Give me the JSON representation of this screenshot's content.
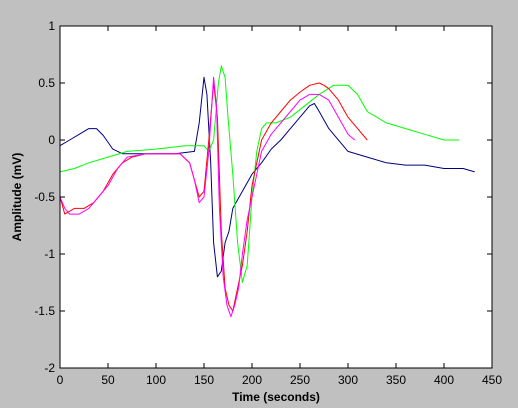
{
  "chart_data": {
    "type": "line",
    "title": "",
    "xlabel": "Time (seconds)",
    "ylabel": "Amplitude (mV)",
    "xlim": [
      0,
      450
    ],
    "ylim": [
      -2,
      1
    ],
    "x_ticks": [
      0,
      50,
      100,
      150,
      200,
      250,
      300,
      350,
      400,
      450
    ],
    "y_ticks": [
      -2,
      -1.5,
      -1,
      -0.5,
      0,
      0.5,
      1
    ],
    "x_tick_labels": [
      "0",
      "50",
      "100",
      "150",
      "200",
      "250",
      "300",
      "350",
      "400",
      "450"
    ],
    "y_tick_labels": [
      "-2",
      "-1.5",
      "-1",
      "-0.5",
      "0",
      "0.5",
      "1"
    ],
    "grid": false,
    "legend": "none",
    "background": "#ffffff",
    "figure_background": "#c0c0c0",
    "series": [
      {
        "color": "#00007f",
        "x": [
          0,
          10,
          20,
          30,
          38,
          45,
          55,
          65,
          80,
          100,
          120,
          140,
          145,
          150,
          153,
          157,
          160,
          164,
          168,
          172,
          176,
          180,
          190,
          200,
          210,
          220,
          230,
          240,
          250,
          260,
          265,
          270,
          280,
          300,
          320,
          340,
          360,
          380,
          400,
          420,
          432
        ],
        "y": [
          -0.05,
          0.0,
          0.05,
          0.1,
          0.1,
          0.04,
          -0.08,
          -0.12,
          -0.12,
          -0.12,
          -0.12,
          -0.1,
          0.15,
          0.55,
          0.4,
          -0.2,
          -0.9,
          -1.2,
          -1.15,
          -0.9,
          -0.8,
          -0.6,
          -0.45,
          -0.3,
          -0.2,
          -0.08,
          0.0,
          0.1,
          0.2,
          0.3,
          0.32,
          0.25,
          0.1,
          -0.1,
          -0.15,
          -0.2,
          -0.22,
          -0.22,
          -0.25,
          -0.25,
          -0.28
        ]
      },
      {
        "color": "#00ff00",
        "x": [
          0,
          15,
          30,
          50,
          70,
          100,
          130,
          145,
          150,
          155,
          160,
          165,
          168,
          172,
          175,
          180,
          185,
          190,
          195,
          200,
          205,
          210,
          215,
          225,
          240,
          255,
          270,
          285,
          300,
          310,
          320,
          340,
          360,
          380,
          400,
          416
        ],
        "y": [
          -0.28,
          -0.25,
          -0.2,
          -0.15,
          -0.1,
          -0.08,
          -0.05,
          -0.05,
          -0.05,
          -0.1,
          0.0,
          0.5,
          0.65,
          0.55,
          0.2,
          -0.3,
          -0.9,
          -1.25,
          -1.1,
          -0.5,
          -0.1,
          0.1,
          0.15,
          0.15,
          0.2,
          0.3,
          0.4,
          0.48,
          0.48,
          0.4,
          0.25,
          0.15,
          0.1,
          0.05,
          0.0,
          0.0
        ]
      },
      {
        "color": "#ff0000",
        "x": [
          0,
          5,
          15,
          25,
          35,
          45,
          55,
          65,
          75,
          90,
          110,
          125,
          135,
          140,
          145,
          150,
          155,
          160,
          164,
          168,
          172,
          176,
          180,
          185,
          190,
          195,
          200,
          210,
          220,
          230,
          240,
          250,
          260,
          270,
          275,
          280,
          290,
          300,
          310,
          320
        ],
        "y": [
          -0.5,
          -0.65,
          -0.6,
          -0.6,
          -0.55,
          -0.45,
          -0.3,
          -0.2,
          -0.15,
          -0.12,
          -0.12,
          -0.12,
          -0.2,
          -0.35,
          -0.5,
          -0.45,
          0.0,
          0.5,
          0.2,
          -0.8,
          -1.3,
          -1.45,
          -1.5,
          -1.3,
          -1.1,
          -0.8,
          -0.4,
          0.0,
          0.15,
          0.25,
          0.35,
          0.42,
          0.48,
          0.5,
          0.48,
          0.45,
          0.35,
          0.2,
          0.1,
          0.0
        ]
      },
      {
        "color": "#ff00ff",
        "x": [
          0,
          5,
          10,
          20,
          30,
          40,
          50,
          60,
          70,
          90,
          110,
          125,
          135,
          140,
          145,
          150,
          155,
          160,
          163,
          166,
          170,
          174,
          178,
          182,
          186,
          190,
          195,
          200,
          205,
          210,
          220,
          230,
          240,
          250,
          260,
          270,
          280,
          290,
          300,
          307
        ],
        "y": [
          -0.5,
          -0.6,
          -0.65,
          -0.65,
          -0.6,
          -0.5,
          -0.4,
          -0.25,
          -0.15,
          -0.12,
          -0.12,
          -0.12,
          -0.2,
          -0.35,
          -0.55,
          -0.5,
          -0.1,
          0.55,
          0.3,
          -0.6,
          -1.2,
          -1.45,
          -1.55,
          -1.45,
          -1.3,
          -1.0,
          -0.7,
          -0.5,
          -0.3,
          -0.1,
          0.05,
          0.15,
          0.25,
          0.35,
          0.4,
          0.4,
          0.35,
          0.2,
          0.05,
          0.0
        ]
      }
    ]
  }
}
